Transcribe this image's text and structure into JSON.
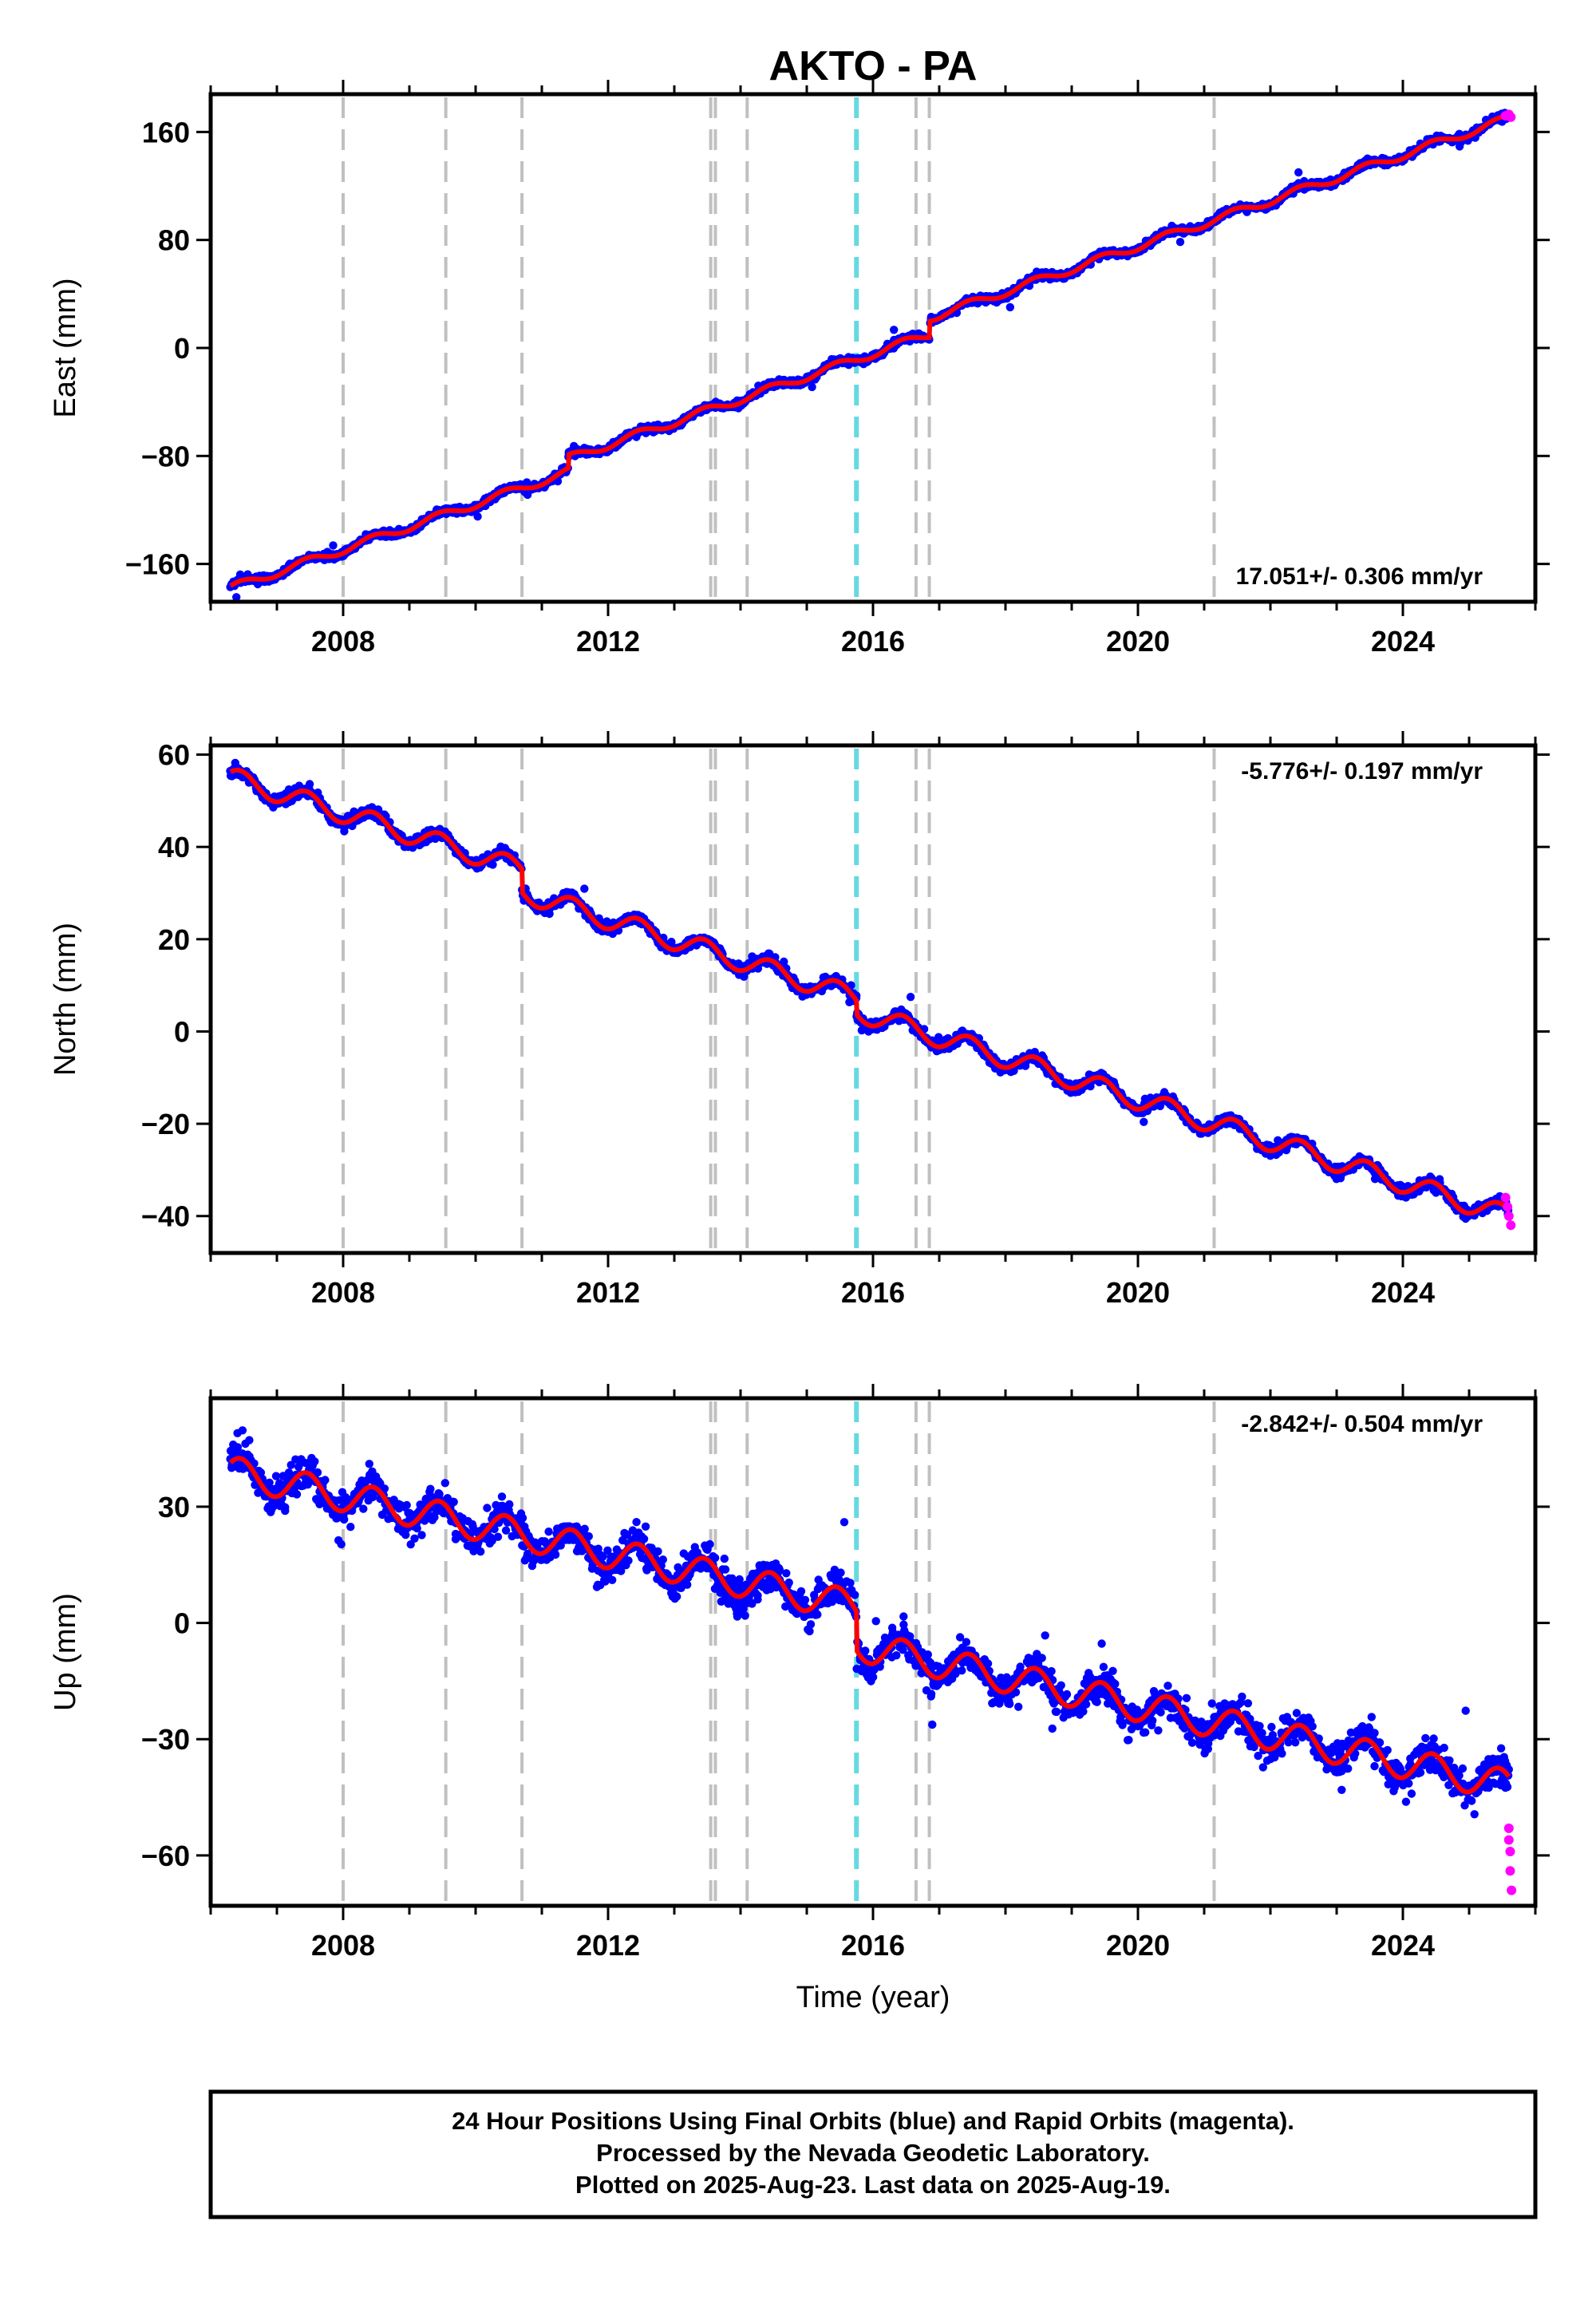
{
  "title": "AKTO - PA",
  "xlabel": "Time (year)",
  "footer": {
    "line1": "24 Hour Positions Using Final Orbits (blue) and Rapid Orbits (magenta).",
    "line2": "Processed by the Nevada Geodetic Laboratory.",
    "line3": "Plotted on 2025-Aug-23. Last data on 2025-Aug-19."
  },
  "colors": {
    "final_orbits": "#0000ff",
    "rapid_orbits": "#ff00ff",
    "model": "#ff0000",
    "equipment_change": "#c0c0c0",
    "earthquake": "#66d9e0"
  },
  "chart_data": [
    {
      "type": "scatter",
      "ylabel": "East (mm)",
      "rate": "17.051+/- 0.306 mm/yr",
      "rate_mm_per_yr": 17.051,
      "xlim": [
        2006.0,
        2026.0
      ],
      "ylim": [
        -188,
        188
      ],
      "xticks": [
        2008,
        2012,
        2016,
        2020,
        2024
      ],
      "yticks": [
        -160,
        -80,
        0,
        80,
        160
      ],
      "grid": false,
      "vertical_lines": {
        "equipment_change": [
          2008.0,
          2009.55,
          2010.7,
          2013.55,
          2013.62,
          2014.1,
          2016.65,
          2016.85,
          2021.15
        ],
        "earthquake": [
          2015.75
        ]
      },
      "model_trend": [
        [
          2006.3,
          -178
        ],
        [
          2025.6,
          170
        ]
      ],
      "offsets": [
        [
          2011.4,
          10
        ],
        [
          2016.85,
          12
        ]
      ],
      "seasonal_amplitude": 3,
      "scatter_spread": 3.5,
      "rapid_points": [
        [
          2025.55,
          172
        ],
        [
          2025.6,
          173
        ],
        [
          2025.63,
          171
        ]
      ]
    },
    {
      "type": "scatter",
      "ylabel": "North (mm)",
      "rate": "-5.776+/- 0.197 mm/yr",
      "rate_mm_per_yr": -5.776,
      "xlim": [
        2006.0,
        2026.0
      ],
      "ylim": [
        -48,
        62
      ],
      "xticks": [
        2008,
        2012,
        2016,
        2020,
        2024
      ],
      "yticks": [
        -40,
        -20,
        0,
        20,
        40,
        60
      ],
      "grid": false,
      "vertical_lines": {
        "equipment_change": [
          2008.0,
          2009.55,
          2010.7,
          2013.55,
          2013.62,
          2014.1,
          2016.65,
          2016.85,
          2021.15
        ],
        "earthquake": [
          2015.75
        ]
      },
      "model_trend": [
        [
          2006.3,
          55
        ],
        [
          2025.6,
          -40
        ]
      ],
      "offsets": [
        [
          2010.7,
          -5
        ],
        [
          2015.75,
          -3
        ]
      ],
      "seasonal_amplitude": 2.2,
      "scatter_spread": 1.6,
      "rapid_points": [
        [
          2025.55,
          -36
        ],
        [
          2025.58,
          -38
        ],
        [
          2025.6,
          -40
        ],
        [
          2025.63,
          -42
        ]
      ]
    },
    {
      "type": "scatter",
      "ylabel": "Up (mm)",
      "rate": "-2.842+/- 0.504 mm/yr",
      "rate_mm_per_yr": -2.842,
      "xlim": [
        2006.0,
        2026.0
      ],
      "ylim": [
        -73,
        58
      ],
      "xticks": [
        2008,
        2012,
        2016,
        2020,
        2024
      ],
      "yticks": [
        -60,
        -30,
        0,
        30
      ],
      "grid": false,
      "vertical_lines": {
        "equipment_change": [
          2008.0,
          2009.55,
          2010.7,
          2013.55,
          2013.62,
          2014.1,
          2016.65,
          2016.85,
          2021.15
        ],
        "earthquake": [
          2015.75
        ]
      },
      "model_trend": [
        [
          2006.3,
          39
        ],
        [
          2025.6,
          -42
        ]
      ],
      "offsets": [
        [
          2015.75,
          -10
        ]
      ],
      "seasonal_amplitude": 4,
      "scatter_spread": 5.5,
      "rapid_points": [
        [
          2025.6,
          -53
        ],
        [
          2025.6,
          -56
        ],
        [
          2025.62,
          -59
        ],
        [
          2025.62,
          -64
        ],
        [
          2025.64,
          -69
        ]
      ]
    }
  ]
}
